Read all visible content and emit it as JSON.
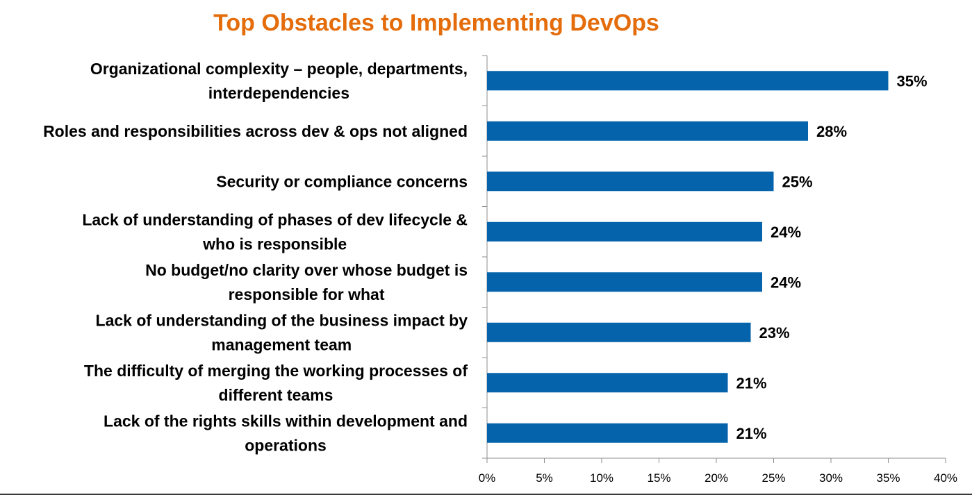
{
  "chart_data": {
    "type": "bar",
    "orientation": "horizontal",
    "title": "Top Obstacles to Implementing DevOps",
    "xlabel": "",
    "ylabel": "",
    "categories": [
      [
        "Organizational complexity – people, departments,",
        "interdependencies"
      ],
      [
        "Roles and responsibilities across dev & ops not aligned"
      ],
      [
        "Security or compliance concerns"
      ],
      [
        "Lack of understanding of phases of dev lifecycle &",
        "who is responsible"
      ],
      [
        "No budget/no clarity over whose budget is",
        "responsible for what"
      ],
      [
        "Lack of understanding of the business impact by",
        "management team"
      ],
      [
        "The difficulty of merging the working processes of",
        "different teams"
      ],
      [
        "Lack of the rights skills within development and",
        "operations"
      ]
    ],
    "values": [
      35,
      28,
      25,
      24,
      24,
      23,
      21,
      21
    ],
    "value_labels": [
      "35%",
      "28%",
      "25%",
      "24%",
      "24%",
      "23%",
      "21%",
      "21%"
    ],
    "xlim": [
      0,
      40
    ],
    "xticks": [
      0,
      5,
      10,
      15,
      20,
      25,
      30,
      35,
      40
    ],
    "xtick_labels": [
      "0%",
      "5%",
      "10%",
      "15%",
      "20%",
      "25%",
      "30%",
      "35%",
      "40%"
    ],
    "grid": false,
    "legend": "none",
    "bar_color": "#0563ab",
    "title_color": "#e46c0a"
  }
}
